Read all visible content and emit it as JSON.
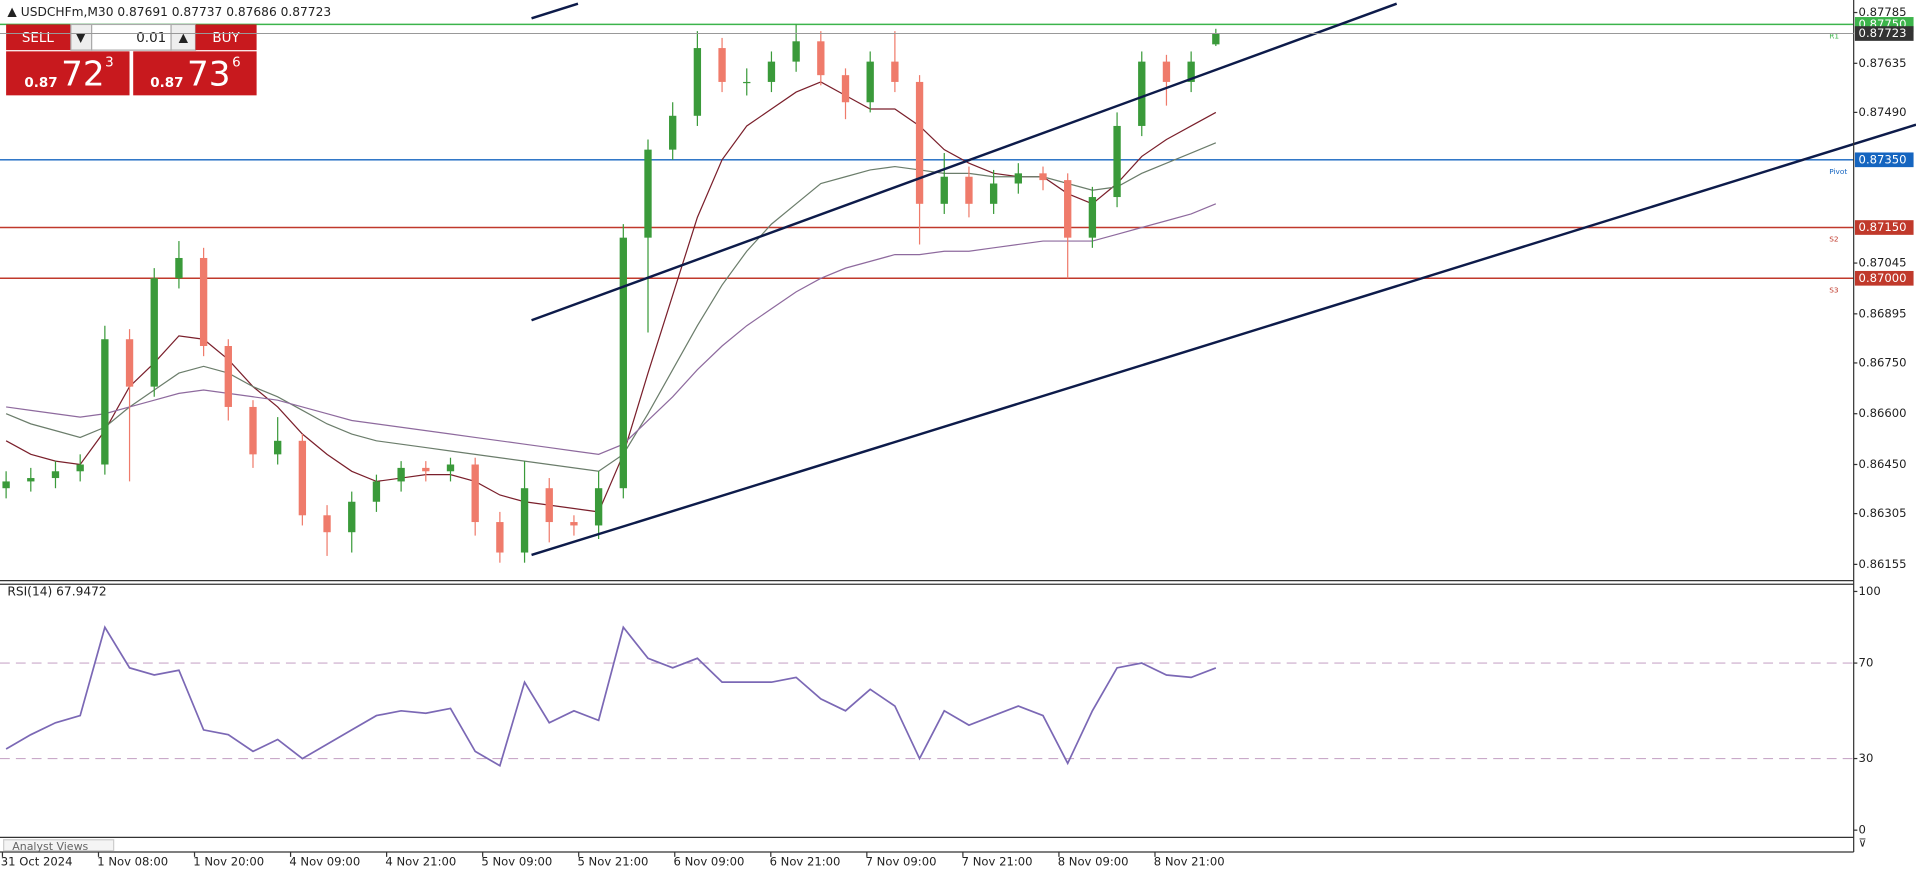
{
  "header": {
    "symbol": "USDCHFm,M30"
  },
  "trade_panel": {
    "sell": "SELL",
    "buy": "BUY",
    "lot": "0.01",
    "bid": {
      "prefix": "0.87",
      "big": "72",
      "small": "3"
    },
    "ask": {
      "prefix": "0.87",
      "big": "73",
      "small": "6"
    }
  },
  "tab": "Analyst Views",
  "chart_data": [
    {
      "type": "candlestick",
      "open": [
        0.8638,
        0.864,
        0.8641,
        0.8643,
        0.8645,
        0.8682,
        0.8668,
        0.87,
        0.8706,
        0.868,
        0.8662,
        0.8648,
        0.8652,
        0.863,
        0.8625,
        0.8634,
        0.864,
        0.8644,
        0.8643,
        0.8645,
        0.8628,
        0.8619,
        0.8638,
        0.8628,
        0.8627,
        0.8638,
        0.8712,
        0.8738,
        0.8748,
        0.8768,
        0.8758,
        0.8758,
        0.8764,
        0.877,
        0.876,
        0.8752,
        0.8764,
        0.8758,
        0.8722,
        0.873,
        0.8722,
        0.8728,
        0.8731,
        0.8729,
        0.8712,
        0.8724,
        0.8745,
        0.8764,
        0.8758,
        0.87691
      ],
      "high": [
        0.8643,
        0.8644,
        0.8646,
        0.8648,
        0.8686,
        0.8685,
        0.8703,
        0.8711,
        0.8709,
        0.8682,
        0.8664,
        0.8659,
        0.8654,
        0.8633,
        0.8637,
        0.8642,
        0.8646,
        0.8646,
        0.8647,
        0.8647,
        0.8631,
        0.8646,
        0.8641,
        0.863,
        0.8643,
        0.8716,
        0.8741,
        0.8752,
        0.8773,
        0.8771,
        0.8762,
        0.8767,
        0.8775,
        0.8773,
        0.8762,
        0.8767,
        0.8773,
        0.876,
        0.8737,
        0.8733,
        0.8732,
        0.8734,
        0.8733,
        0.8731,
        0.8727,
        0.8749,
        0.8767,
        0.8766,
        0.8767,
        0.87737
      ],
      "low": [
        0.8635,
        0.8637,
        0.8638,
        0.864,
        0.8642,
        0.864,
        0.8665,
        0.8697,
        0.8677,
        0.8658,
        0.8644,
        0.8645,
        0.8627,
        0.8618,
        0.8619,
        0.8631,
        0.8637,
        0.864,
        0.864,
        0.8624,
        0.8616,
        0.8616,
        0.8622,
        0.8624,
        0.8623,
        0.8635,
        0.8684,
        0.8735,
        0.8745,
        0.8755,
        0.8754,
        0.8755,
        0.8761,
        0.8757,
        0.8747,
        0.8749,
        0.8755,
        0.871,
        0.8719,
        0.8718,
        0.8719,
        0.8725,
        0.8726,
        0.87,
        0.8709,
        0.8721,
        0.8742,
        0.8751,
        0.8755,
        0.87686
      ],
      "close": [
        0.864,
        0.8641,
        0.8643,
        0.8645,
        0.8682,
        0.8668,
        0.87,
        0.8706,
        0.868,
        0.8662,
        0.8648,
        0.8652,
        0.863,
        0.8625,
        0.8634,
        0.864,
        0.8644,
        0.8643,
        0.8645,
        0.8628,
        0.8619,
        0.8638,
        0.8628,
        0.8627,
        0.8638,
        0.8712,
        0.8738,
        0.8748,
        0.8768,
        0.8758,
        0.8758,
        0.8764,
        0.877,
        0.876,
        0.8752,
        0.8764,
        0.8758,
        0.8722,
        0.873,
        0.8722,
        0.8728,
        0.8731,
        0.8729,
        0.8712,
        0.8724,
        0.8745,
        0.8764,
        0.8758,
        0.8764,
        0.87723
      ],
      "up_color": "#3a9a3a",
      "down_color": "#ef7b6b",
      "moving_averages": [
        {
          "color": "#7a1f2b",
          "values": [
            0.8652,
            0.8648,
            0.8646,
            0.8645,
            0.8655,
            0.8668,
            0.8675,
            0.8683,
            0.8682,
            0.8676,
            0.8668,
            0.8662,
            0.8654,
            0.8648,
            0.8643,
            0.864,
            0.8641,
            0.8642,
            0.8642,
            0.864,
            0.8636,
            0.8634,
            0.8633,
            0.8632,
            0.8631,
            0.8648,
            0.8672,
            0.8695,
            0.8718,
            0.8735,
            0.8745,
            0.875,
            0.8755,
            0.8758,
            0.8754,
            0.875,
            0.875,
            0.8745,
            0.8738,
            0.8734,
            0.8731,
            0.873,
            0.873,
            0.8725,
            0.8722,
            0.8728,
            0.8736,
            0.8741,
            0.8745,
            0.8749
          ]
        },
        {
          "color": "#6b7d6b",
          "values": [
            0.866,
            0.8657,
            0.8655,
            0.8653,
            0.8656,
            0.8662,
            0.8667,
            0.8672,
            0.8674,
            0.8672,
            0.8668,
            0.8665,
            0.8661,
            0.8657,
            0.8654,
            0.8652,
            0.8651,
            0.865,
            0.8649,
            0.8648,
            0.8647,
            0.8646,
            0.8645,
            0.8644,
            0.8643,
            0.8648,
            0.866,
            0.8673,
            0.8686,
            0.8698,
            0.8708,
            0.8716,
            0.8722,
            0.8728,
            0.873,
            0.8732,
            0.8733,
            0.8732,
            0.8731,
            0.8731,
            0.873,
            0.873,
            0.873,
            0.8728,
            0.8726,
            0.8727,
            0.8731,
            0.8734,
            0.8737,
            0.874
          ]
        },
        {
          "color": "#8e6a9e",
          "values": [
            0.8662,
            0.8661,
            0.866,
            0.8659,
            0.866,
            0.8662,
            0.8664,
            0.8666,
            0.8667,
            0.8666,
            0.8665,
            0.8664,
            0.8662,
            0.866,
            0.8658,
            0.8657,
            0.8656,
            0.8655,
            0.8654,
            0.8653,
            0.8652,
            0.8651,
            0.865,
            0.8649,
            0.8648,
            0.8651,
            0.8658,
            0.8665,
            0.8673,
            0.868,
            0.8686,
            0.8691,
            0.8696,
            0.87,
            0.8703,
            0.8705,
            0.8707,
            0.8707,
            0.8708,
            0.8708,
            0.8709,
            0.871,
            0.8711,
            0.8711,
            0.8711,
            0.8713,
            0.8715,
            0.8717,
            0.8719,
            0.8722
          ]
        }
      ],
      "levels": [
        {
          "name": "R1",
          "value": 0.8775,
          "label": "0.87750",
          "color": "#3cb44b"
        },
        {
          "name": "Pivot",
          "value": 0.8735,
          "label": "0.87350",
          "color": "#1565c0"
        },
        {
          "name": "S2",
          "value": 0.8715,
          "label": "0.87150",
          "color": "#c0392b"
        },
        {
          "name": "S3",
          "value": 0.87,
          "label": "0.87000",
          "color": "#c0392b"
        }
      ],
      "ylim": [
        0.86107,
        0.87822
      ],
      "yticks": [
        0.87785,
        0.87635,
        {
          "value": 0.8749,
          "label": "0.87490"
        },
        0.87045,
        0.86895,
        {
          "value": 0.8675,
          "label": "0.86750"
        },
        {
          "value": 0.866,
          "label": "0.86600"
        },
        {
          "value": 0.8645,
          "label": "0.86450"
        },
        0.86305,
        0.86155
      ],
      "xlabels": [
        "31 Oct 2024",
        "1 Nov 08:00",
        "1 Nov 20:00",
        "4 Nov 09:00",
        "4 Nov 21:00",
        "5 Nov 09:00",
        "5 Nov 21:00",
        "6 Nov 09:00",
        "6 Nov 21:00",
        "7 Nov 09:00",
        "7 Nov 21:00",
        "8 Nov 09:00",
        "8 Nov 21:00"
      ]
    },
    {
      "type": "line",
      "title": "RSI(14)",
      "color": "#7b68b5",
      "values": [
        34,
        40,
        45,
        48,
        85,
        68,
        65,
        67,
        42,
        40,
        33,
        38,
        30,
        36,
        42,
        48,
        50,
        49,
        51,
        33,
        27,
        62,
        45,
        50,
        46,
        85,
        72,
        68,
        72,
        62,
        62,
        62,
        64,
        55,
        50,
        59,
        52,
        30,
        50,
        44,
        48,
        52,
        48,
        28,
        50,
        68,
        70,
        65,
        64,
        67.9472
      ],
      "ylim": [
        -3,
        103
      ],
      "yticks": [
        100,
        70,
        30,
        0
      ],
      "levels": [
        70,
        30
      ]
    }
  ]
}
